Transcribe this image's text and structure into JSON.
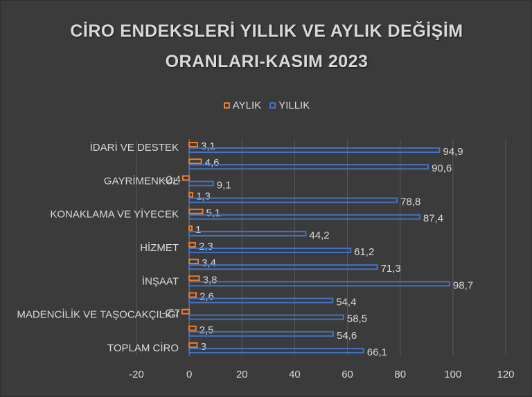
{
  "chart_data": {
    "type": "bar",
    "orientation": "horizontal",
    "title": [
      "CİRO ENDEKSLERİ YILLIK VE AYLIK DEĞİŞİM",
      "ORANLARI-KASIM 2023"
    ],
    "categories": [
      "TOPLAM CİRO",
      "",
      "MADENCİLİK VE TAŞOCAKÇILIĞI",
      "",
      "İNŞAAT",
      "",
      "HİZMET",
      "",
      "KONAKLAMA VE YİYECEK",
      "",
      "GAYRİMENKUL",
      "",
      "İDARİ VE DESTEK"
    ],
    "series": [
      {
        "name": "AYLIK",
        "color": "#ed7d31",
        "values": [
          3,
          2.5,
          -2.7,
          2.6,
          3.8,
          3.4,
          2.3,
          1,
          5.1,
          1.3,
          -2.4,
          4.6,
          3.1
        ],
        "labels": [
          "3",
          "2,5",
          "-2,7",
          "2,6",
          "3,8",
          "3,4",
          "2,3",
          "1",
          "5,1",
          "1,3",
          "-2,4",
          "4,6",
          "3,1"
        ]
      },
      {
        "name": "YILLIK",
        "color": "#4472c4",
        "values": [
          66.1,
          54.6,
          58.5,
          54.4,
          98.7,
          71.3,
          61.2,
          44.2,
          87.4,
          78.8,
          9.1,
          90.6,
          94.9
        ],
        "labels": [
          "66,1",
          "54,6",
          "58,5",
          "54,4",
          "98,7",
          "71,3",
          "61,2",
          "44,2",
          "87,4",
          "78,8",
          "9,1",
          "90,6",
          "94,9"
        ]
      }
    ],
    "xlim": [
      -20,
      120
    ],
    "xticks": [
      -20,
      0,
      20,
      40,
      60,
      80,
      100,
      120
    ],
    "grid": true,
    "legend_position": "top"
  }
}
